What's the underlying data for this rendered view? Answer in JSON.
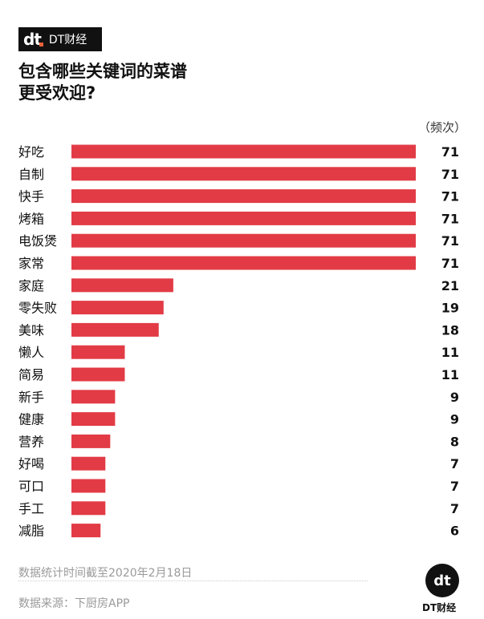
{
  "brand": {
    "name": "DT财经",
    "mark": "dt"
  },
  "chart_data": {
    "type": "bar",
    "orientation": "horizontal",
    "title": "包含哪些关键词的菜谱更受欢迎?",
    "title_lines": [
      "包含哪些关键词的菜谱",
      "更受欢迎?"
    ],
    "unit_label": "（频次）",
    "categories": [
      "好吃",
      "自制",
      "快手",
      "烤箱",
      "电饭煲",
      "家常",
      "家庭",
      "零失败",
      "美味",
      "懒人",
      "简易",
      "新手",
      "健康",
      "营养",
      "好喝",
      "可口",
      "手工",
      "减脂"
    ],
    "values": [
      71,
      71,
      71,
      71,
      71,
      71,
      21,
      19,
      18,
      11,
      11,
      9,
      9,
      8,
      7,
      7,
      7,
      6
    ],
    "xlim": [
      0,
      71
    ],
    "bar_color": "#e23b45"
  },
  "footer": {
    "date_note": "数据统计时间截至2020年2月18日",
    "source": "数据来源：下厨房APP"
  }
}
